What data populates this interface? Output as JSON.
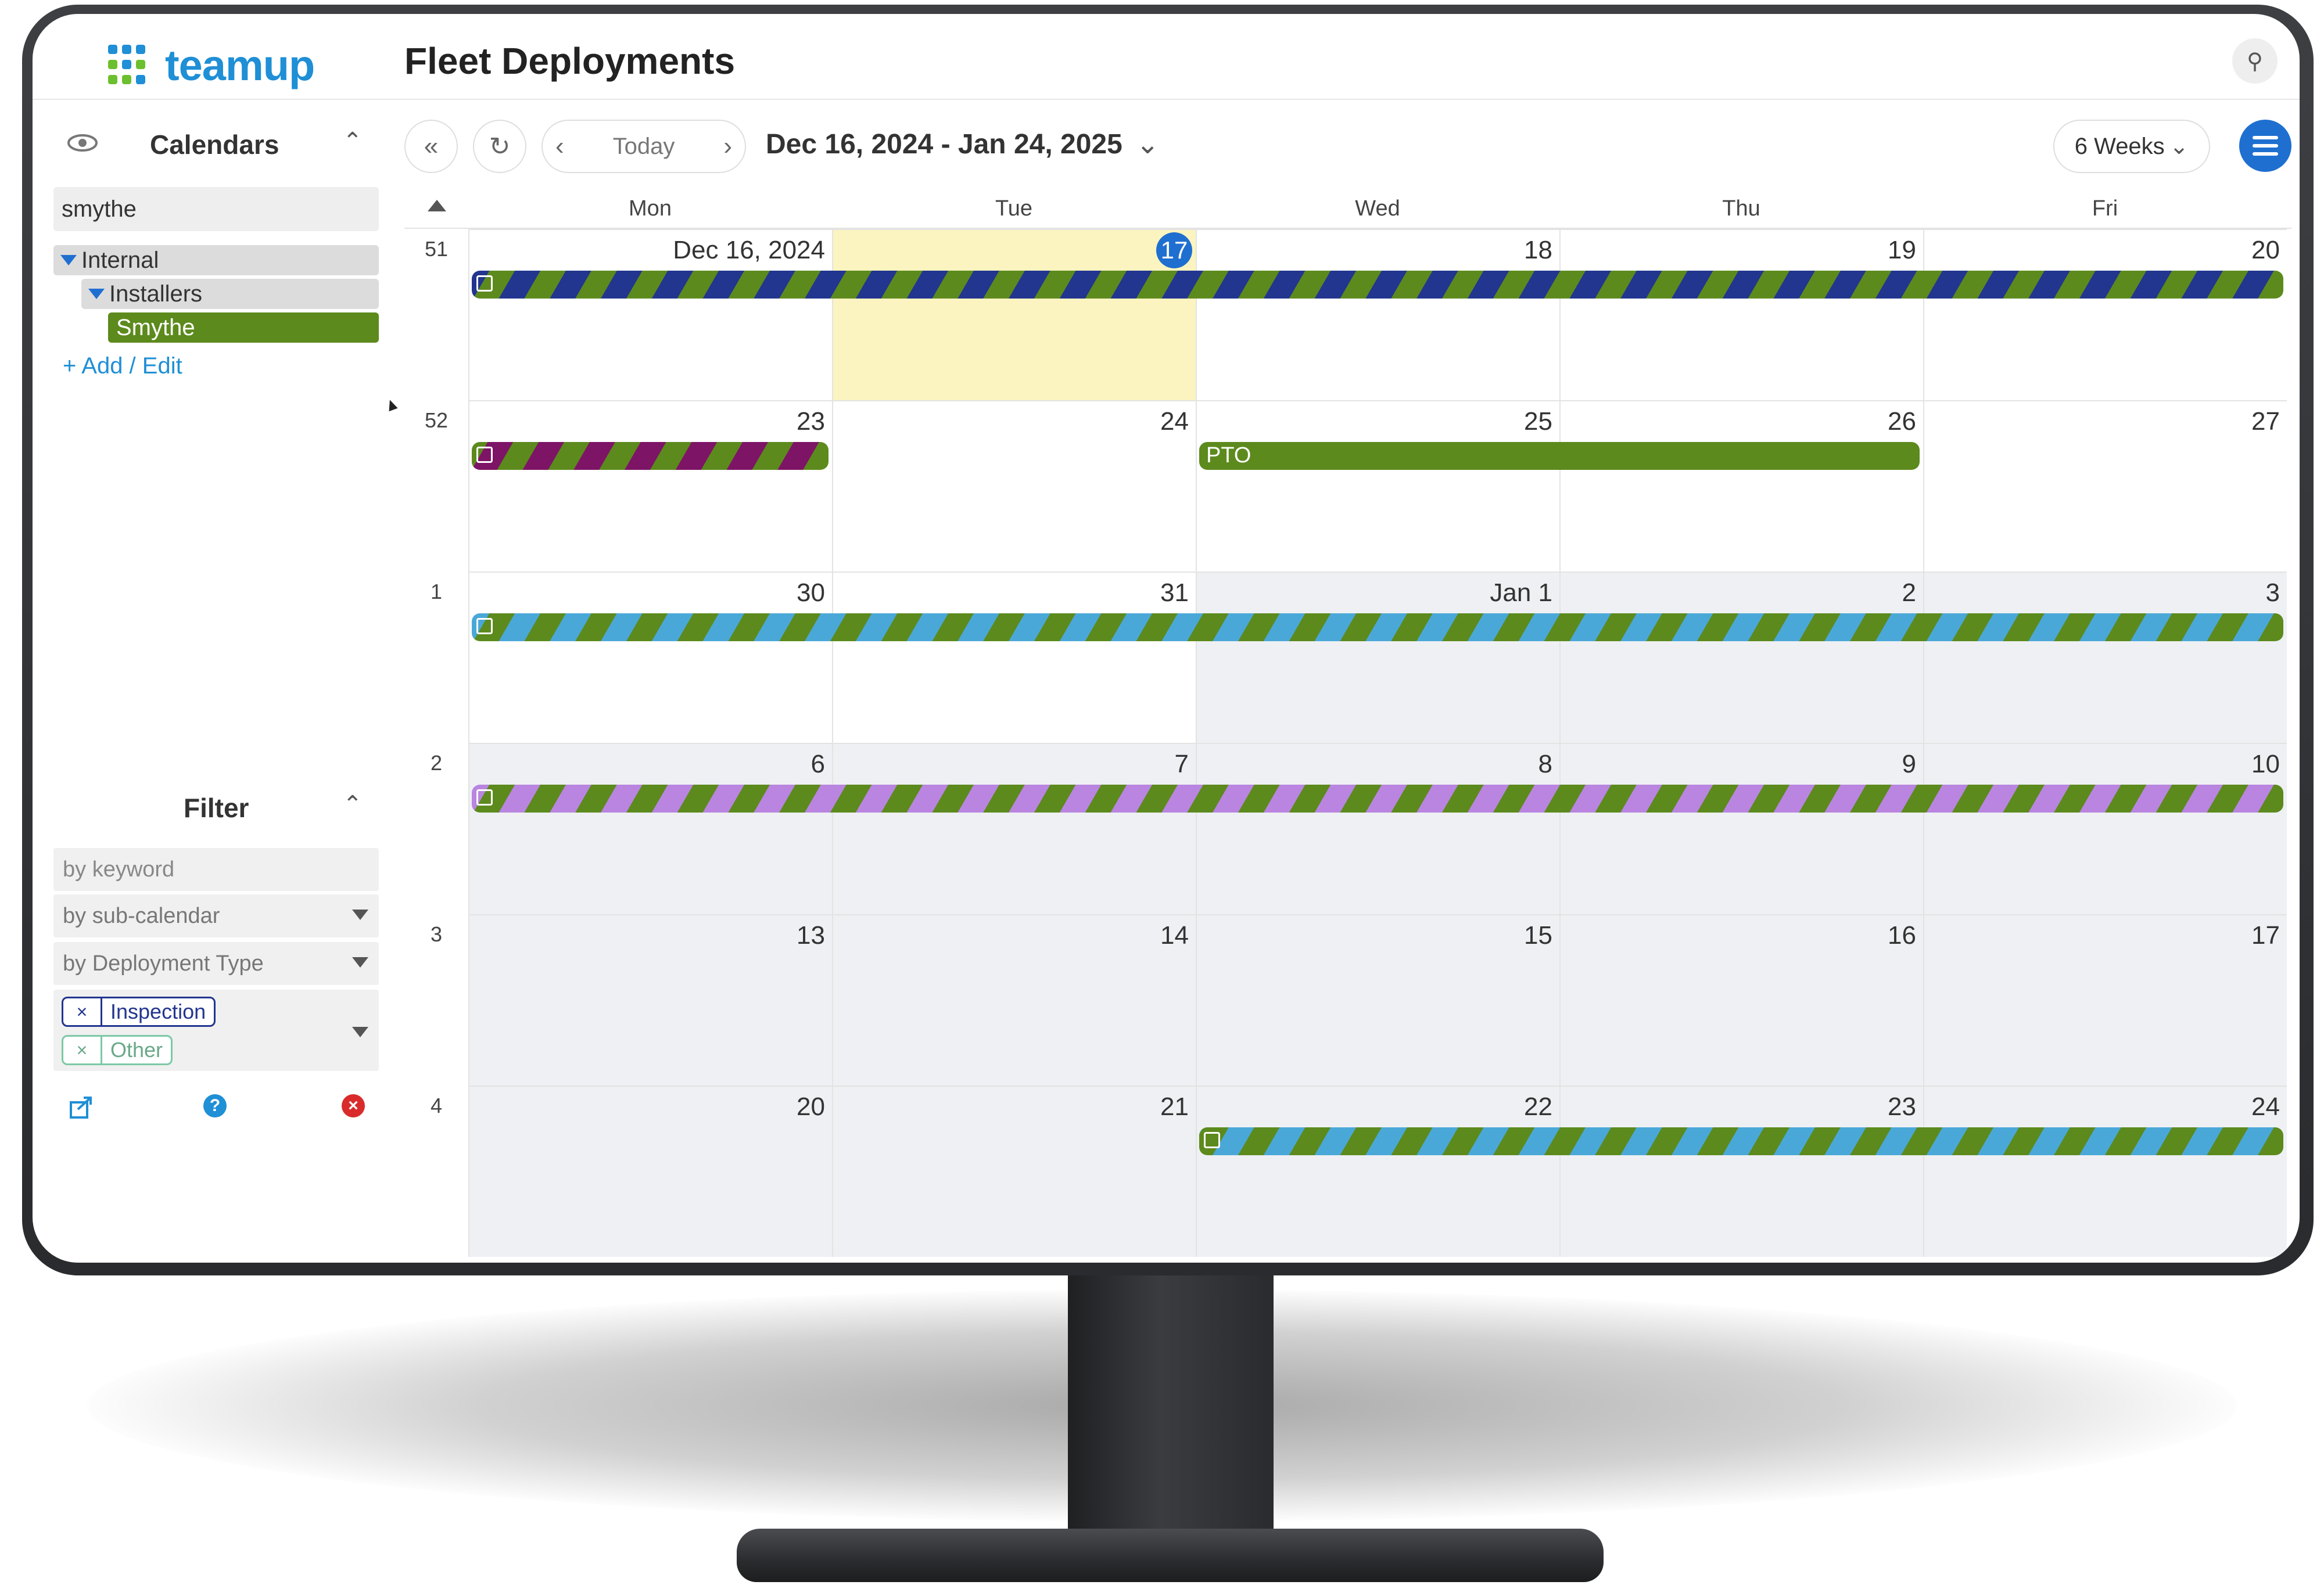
{
  "app": {
    "brand": "teamup",
    "title": "Fleet Deployments"
  },
  "colors": {
    "accent": "#1f6fd0",
    "green": "#5c8a1d",
    "navy": "#22358f",
    "purple": "#7d1466",
    "sky": "#4aa8d8",
    "lavender": "#b985e0",
    "today_bg": "#fbf4c0"
  },
  "sidebar": {
    "calendars_title": "Calendars",
    "search_value": "smythe",
    "tree": [
      {
        "label": "Internal",
        "level": 0
      },
      {
        "label": "Installers",
        "level": 1
      },
      {
        "label": "Smythe",
        "level": 2
      }
    ],
    "add_edit_label": "+ Add / Edit",
    "filter_title": "Filter",
    "filter_keyword_placeholder": "by keyword",
    "filter_subcal": "by sub-calendar",
    "filter_deploy": "by Deployment Type",
    "chips": [
      "Inspection",
      "Other"
    ],
    "footer_icons": [
      "share-icon",
      "help-icon",
      "clear-icon"
    ]
  },
  "toolbar": {
    "today_label": "Today",
    "date_range": "Dec 16, 2024 - Jan 24, 2025",
    "view_label": "6 Weeks"
  },
  "calendar": {
    "day_headers": [
      "Mon",
      "Tue",
      "Wed",
      "Thu",
      "Fri"
    ],
    "weeks": [
      {
        "num": "51",
        "days": [
          "Dec 16, 2024",
          "17",
          "18",
          "19",
          "20"
        ]
      },
      {
        "num": "52",
        "days": [
          "23",
          "24",
          "25",
          "26",
          "27"
        ]
      },
      {
        "num": "1",
        "days": [
          "30",
          "31",
          "Jan 1",
          "2",
          "3"
        ]
      },
      {
        "num": "2",
        "days": [
          "6",
          "7",
          "8",
          "9",
          "10"
        ]
      },
      {
        "num": "3",
        "days": [
          "13",
          "14",
          "15",
          "16",
          "17"
        ]
      },
      {
        "num": "4",
        "days": [
          "20",
          "21",
          "22",
          "23",
          "24"
        ]
      }
    ],
    "events": [
      {
        "week": 0,
        "start": 0,
        "end": 4,
        "colors": [
          "#5c8a1d",
          "#22358f"
        ],
        "title": ""
      },
      {
        "week": 1,
        "start": 0,
        "end": 0,
        "colors": [
          "#5c8a1d",
          "#7d1466"
        ],
        "title": ""
      },
      {
        "week": 1,
        "start": 2,
        "end": 3,
        "colors": [
          "#5c8a1d",
          "#5c8a1d"
        ],
        "title": "PTO"
      },
      {
        "week": 2,
        "start": 0,
        "end": 4,
        "colors": [
          "#5c8a1d",
          "#4aa8d8"
        ],
        "title": ""
      },
      {
        "week": 3,
        "start": 0,
        "end": 4,
        "colors": [
          "#5c8a1d",
          "#b985e0"
        ],
        "title": ""
      },
      {
        "week": 5,
        "start": 2,
        "end": 4,
        "colors": [
          "#5c8a1d",
          "#4aa8d8"
        ],
        "title": ""
      }
    ]
  }
}
